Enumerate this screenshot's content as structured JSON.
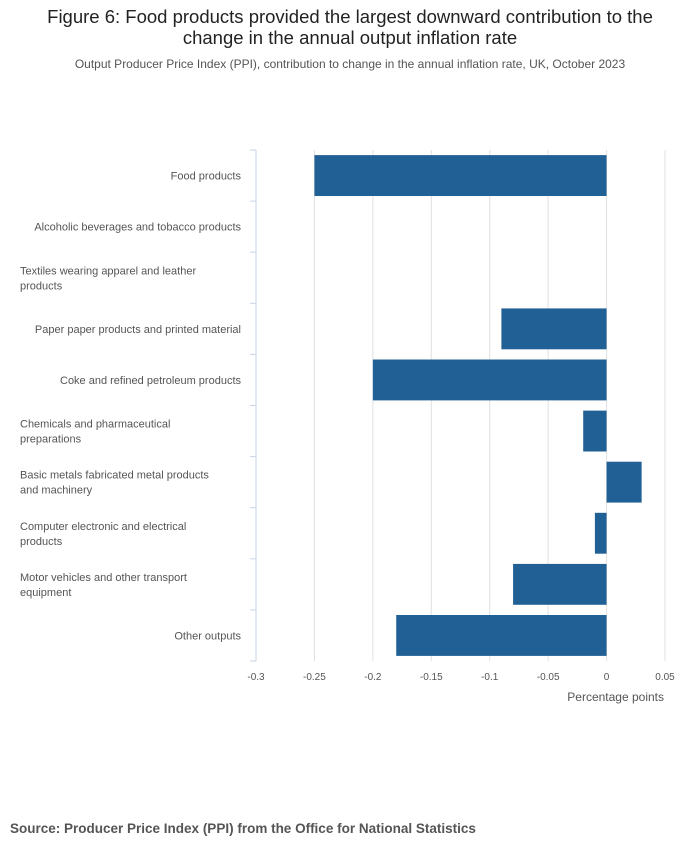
{
  "title": "Figure 6: Food products provided the largest downward contribution to the change in the annual output inflation rate",
  "subtitle": "Output Producer Price Index (PPI), contribution to change in the annual inflation rate, UK, October 2023",
  "source": "Source: Producer Price Index (PPI) from the Office for National Statistics",
  "colors": {
    "bar": "#206095",
    "grid": "#e0e0e0",
    "axis": "#c8d4e6"
  },
  "chart_data": {
    "type": "bar",
    "orientation": "horizontal",
    "categories": [
      [
        "Food products"
      ],
      [
        "Alcoholic beverages and tobacco products"
      ],
      [
        "Textiles wearing apparel and leather",
        "products"
      ],
      [
        "Paper paper products and printed material"
      ],
      [
        "Coke and refined petroleum products"
      ],
      [
        "Chemicals and pharmaceutical",
        "preparations"
      ],
      [
        "Basic metals fabricated metal products",
        "and machinery"
      ],
      [
        "Computer electronic and electrical",
        "products"
      ],
      [
        "Motor vehicles and other transport",
        "equipment"
      ],
      [
        "Other outputs"
      ]
    ],
    "values": [
      -0.25,
      0,
      0,
      -0.09,
      -0.2,
      -0.02,
      0.03,
      -0.01,
      -0.08,
      -0.18
    ],
    "xlabel": "Percentage points",
    "xlim": [
      -0.3,
      0.05
    ],
    "ticks": [
      -0.3,
      -0.25,
      -0.2,
      -0.15,
      -0.1,
      -0.05,
      0,
      0.05
    ],
    "tick_labels": [
      "-0.3",
      "-0.25",
      "-0.2",
      "-0.15",
      "-0.1",
      "-0.05",
      "0",
      "0.05"
    ],
    "grid": true,
    "legend": "none"
  }
}
